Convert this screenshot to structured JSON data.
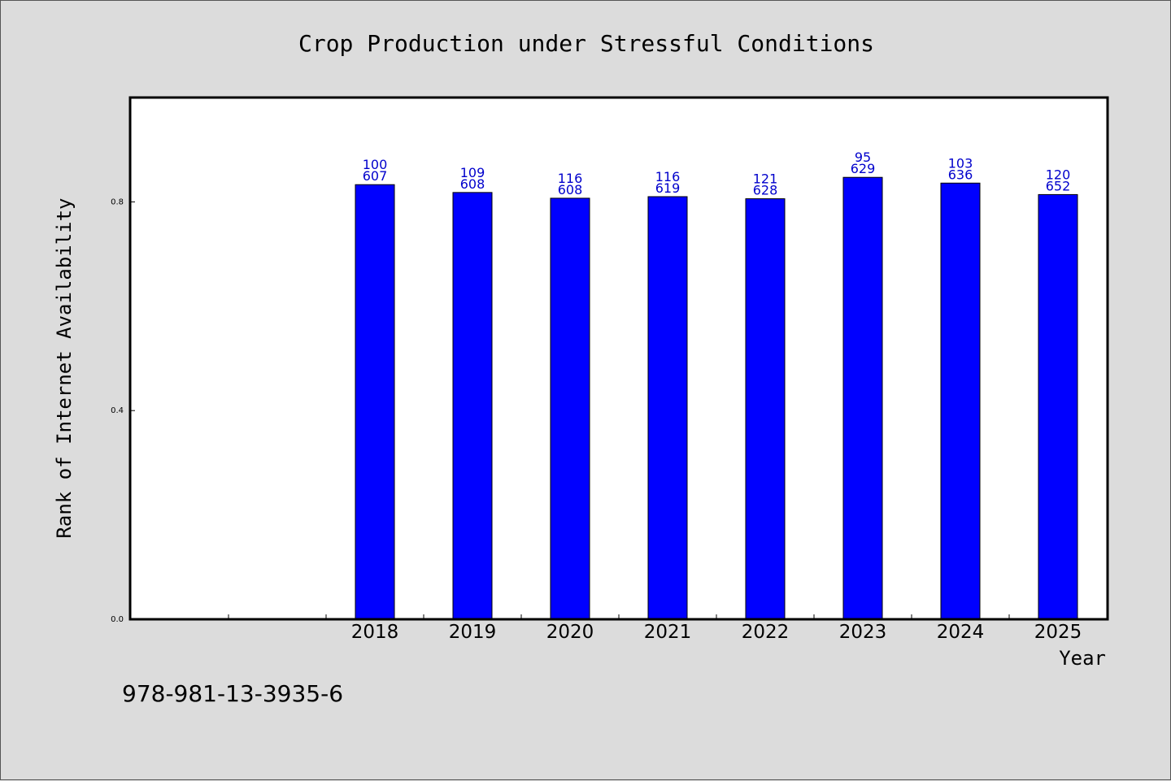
{
  "footer": {
    "code": "978-981-13-3935-6"
  },
  "chart_data": {
    "type": "bar",
    "title": "Crop Production under Stressful Conditions",
    "xlabel": "Year",
    "ylabel": "Rank of Internet Availability",
    "categories": [
      "",
      "",
      "2018",
      "2019",
      "2020",
      "2021",
      "2022",
      "2023",
      "2024",
      "2025"
    ],
    "values": [
      null,
      null,
      0.833,
      0.818,
      0.807,
      0.81,
      0.806,
      0.847,
      0.836,
      0.814
    ],
    "data_labels": [
      null,
      null,
      [
        "100",
        "607"
      ],
      [
        "109",
        "608"
      ],
      [
        "116",
        "608"
      ],
      [
        "116",
        "619"
      ],
      [
        "121",
        "628"
      ],
      [
        "95",
        "629"
      ],
      [
        "103",
        "636"
      ],
      [
        "120",
        "652"
      ]
    ],
    "ylim": [
      0,
      1.0
    ],
    "yticks": [
      0.0,
      0.4,
      0.8
    ],
    "ytick_labels": [
      "0.0",
      "0.4",
      "0.8"
    ],
    "colors": {
      "bar": "#0000ff",
      "bar_edge": "#000000",
      "data_label": "#0000cc",
      "plot_bg": "#ffffff",
      "page_bg": "#dcdcdc"
    },
    "grid": false,
    "legend": "none"
  }
}
